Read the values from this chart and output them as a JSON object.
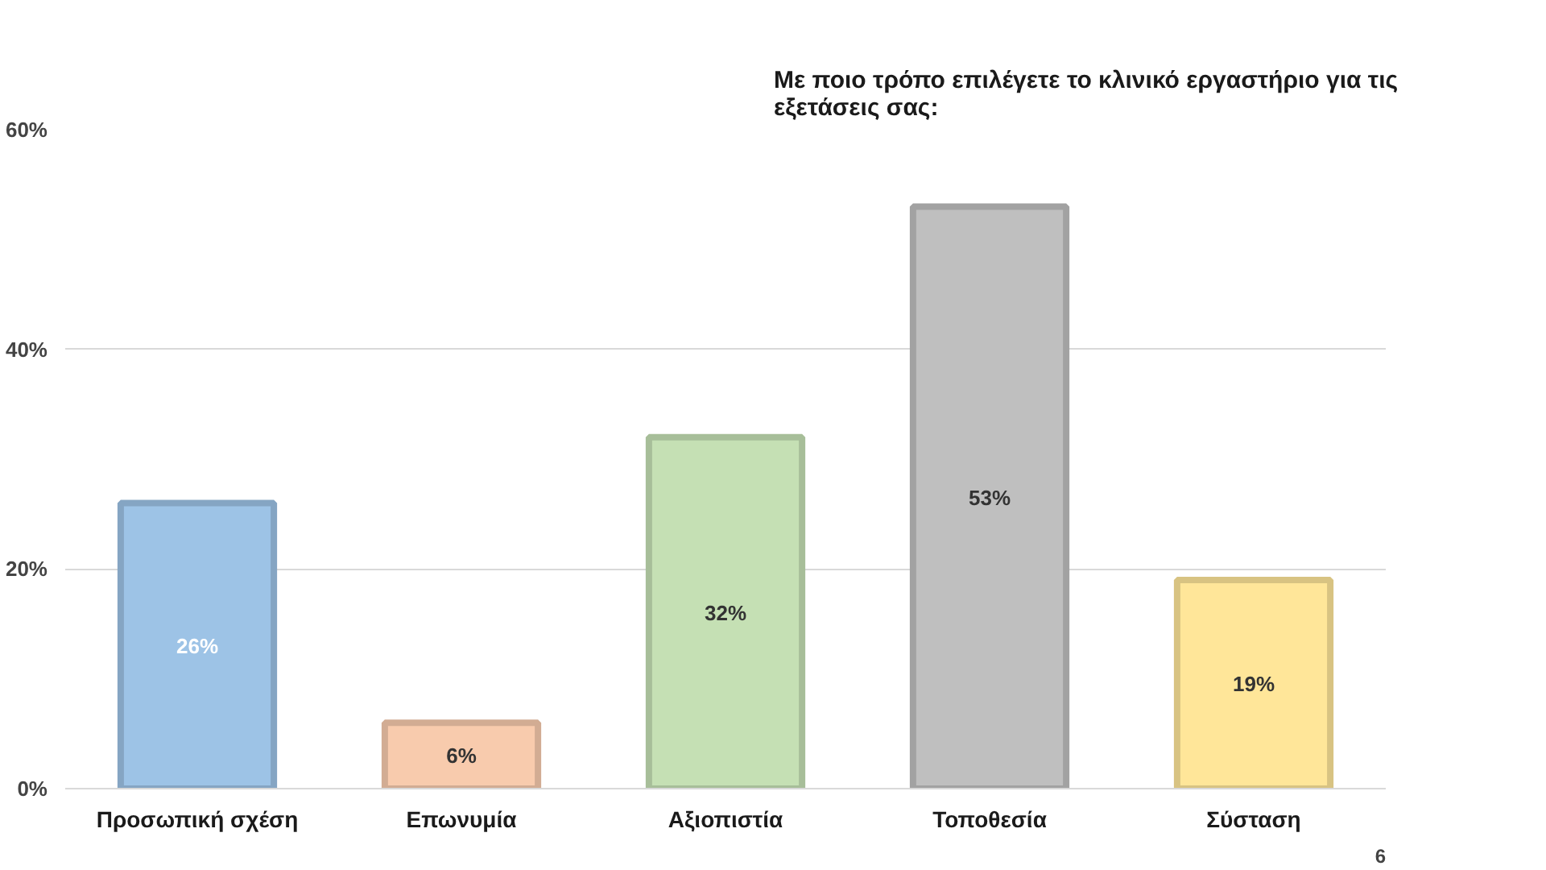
{
  "chart_data": {
    "type": "bar",
    "title": "Με ποιο τρόπο επιλέγετε το κλινικό εργαστήριο για τις εξετάσεις σας:",
    "categories": [
      "Προσωπική σχέση",
      "Επωνυμία",
      "Αξιοπιστία",
      "Τοποθεσία",
      "Σύσταση"
    ],
    "values": [
      26,
      6,
      32,
      53,
      19
    ],
    "colors": [
      "#9dc3e6",
      "#f8cbad",
      "#c5e0b4",
      "#bfbfbf",
      "#ffe699"
    ],
    "ylim": [
      0,
      60
    ],
    "yticks": [
      {
        "value": 0,
        "label": "0%"
      },
      {
        "value": 20,
        "label": "20%"
      },
      {
        "value": 40,
        "label": "40%"
      },
      {
        "value": 60,
        "label": "60%"
      }
    ],
    "value_labels": [
      "26%",
      "6%",
      "32%",
      "53%",
      "19%"
    ],
    "grid": "y",
    "annotations": [
      "6"
    ]
  }
}
